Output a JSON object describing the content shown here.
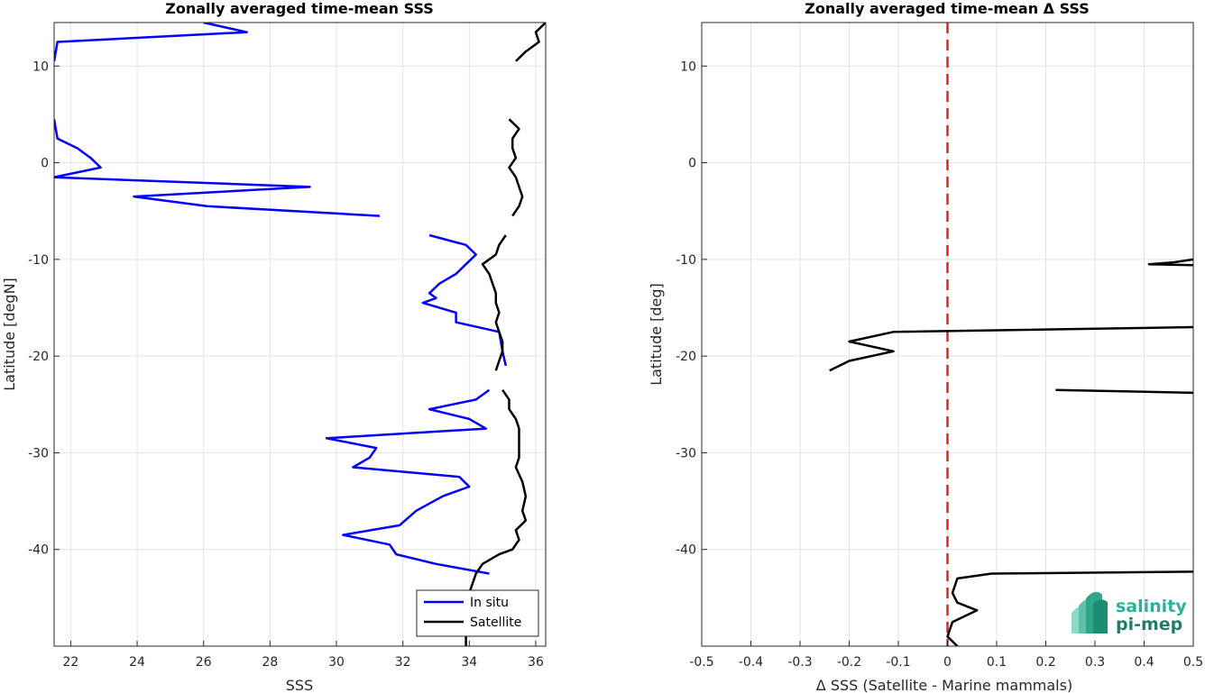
{
  "chart_data": [
    {
      "type": "line",
      "title": "Zonally averaged time-mean SSS",
      "xlabel": "SSS",
      "ylabel": "Latitude [degN]",
      "xlim": [
        21.5,
        36.3
      ],
      "ylim": [
        -50,
        14.5
      ],
      "xticks": [
        22,
        24,
        26,
        28,
        30,
        32,
        34,
        36
      ],
      "yticks": [
        -40,
        -30,
        -20,
        -10,
        0,
        10
      ],
      "grid": true,
      "legend": {
        "placement": "bottom-right",
        "entries": [
          "In situ",
          "Satellite"
        ]
      },
      "series": [
        {
          "name": "In situ",
          "color": "#0000ff",
          "segments": [
            [
              [
                26.0,
                14.5
              ],
              [
                27.3,
                13.5
              ],
              [
                21.6,
                12.5
              ],
              [
                21.5,
                10.5
              ]
            ],
            [
              [
                21.5,
                4.5
              ],
              [
                21.6,
                2.5
              ],
              [
                22.2,
                1.5
              ],
              [
                22.6,
                0.5
              ],
              [
                22.9,
                -0.5
              ],
              [
                21.5,
                -1.5
              ],
              [
                29.2,
                -2.5
              ],
              [
                23.9,
                -3.5
              ],
              [
                26.1,
                -4.5
              ],
              [
                31.3,
                -5.5
              ]
            ],
            [
              [
                32.8,
                -7.5
              ],
              [
                33.9,
                -8.5
              ],
              [
                34.2,
                -9.5
              ],
              [
                33.9,
                -10.5
              ],
              [
                33.6,
                -11.5
              ],
              [
                33.1,
                -12.5
              ],
              [
                32.8,
                -13.5
              ],
              [
                33.0,
                -14.0
              ],
              [
                32.6,
                -14.5
              ],
              [
                33.6,
                -15.5
              ],
              [
                33.6,
                -16.5
              ],
              [
                34.9,
                -17.5
              ],
              [
                35.0,
                -19.5
              ],
              [
                35.1,
                -21.0
              ]
            ],
            [
              [
                34.6,
                -23.5
              ],
              [
                34.2,
                -24.5
              ],
              [
                32.8,
                -25.5
              ],
              [
                34.0,
                -26.5
              ],
              [
                34.5,
                -27.5
              ],
              [
                29.7,
                -28.5
              ],
              [
                31.2,
                -29.5
              ],
              [
                31.0,
                -30.5
              ],
              [
                30.5,
                -31.5
              ],
              [
                33.7,
                -32.5
              ],
              [
                34.0,
                -33.5
              ],
              [
                33.2,
                -34.5
              ],
              [
                32.4,
                -36.0
              ],
              [
                31.9,
                -37.5
              ],
              [
                30.2,
                -38.5
              ],
              [
                31.6,
                -39.5
              ],
              [
                31.8,
                -40.5
              ],
              [
                33.0,
                -41.5
              ],
              [
                34.6,
                -42.5
              ]
            ]
          ]
        },
        {
          "name": "Satellite",
          "color": "#000000",
          "segments": [
            [
              [
                36.3,
                14.5
              ],
              [
                36.0,
                13.5
              ],
              [
                36.1,
                12.5
              ],
              [
                35.7,
                11.5
              ],
              [
                35.4,
                10.5
              ]
            ],
            [
              [
                35.2,
                4.5
              ],
              [
                35.5,
                3.5
              ],
              [
                35.3,
                2.5
              ],
              [
                35.3,
                1.5
              ],
              [
                35.4,
                0.5
              ],
              [
                35.2,
                -0.5
              ],
              [
                35.4,
                -1.5
              ],
              [
                35.5,
                -2.5
              ],
              [
                35.6,
                -3.5
              ],
              [
                35.5,
                -4.5
              ],
              [
                35.3,
                -5.5
              ]
            ],
            [
              [
                35.1,
                -7.5
              ],
              [
                34.9,
                -8.5
              ],
              [
                34.8,
                -9.5
              ],
              [
                34.4,
                -10.5
              ],
              [
                34.6,
                -11.5
              ],
              [
                34.7,
                -12.5
              ],
              [
                34.8,
                -13.5
              ],
              [
                34.8,
                -14.5
              ],
              [
                34.9,
                -15.5
              ],
              [
                34.8,
                -16.5
              ],
              [
                34.9,
                -17.5
              ],
              [
                35.0,
                -18.5
              ],
              [
                35.0,
                -19.5
              ],
              [
                34.9,
                -20.5
              ],
              [
                34.8,
                -21.5
              ]
            ],
            [
              [
                35.0,
                -23.5
              ],
              [
                35.2,
                -24.5
              ],
              [
                35.2,
                -25.5
              ],
              [
                35.4,
                -26.5
              ],
              [
                35.5,
                -27.5
              ],
              [
                35.5,
                -29.0
              ],
              [
                35.5,
                -30.5
              ],
              [
                35.4,
                -31.5
              ],
              [
                35.6,
                -33.0
              ],
              [
                35.7,
                -34.5
              ],
              [
                35.6,
                -36.0
              ],
              [
                35.7,
                -37.0
              ],
              [
                35.4,
                -38.0
              ],
              [
                35.5,
                -39.0
              ],
              [
                35.3,
                -40.0
              ],
              [
                34.9,
                -40.5
              ],
              [
                34.4,
                -41.5
              ],
              [
                34.2,
                -42.5
              ],
              [
                34.1,
                -43.5
              ],
              [
                34.0,
                -44.5
              ],
              [
                34.0,
                -45.5
              ],
              [
                33.9,
                -46.5
              ],
              [
                33.9,
                -48.0
              ],
              [
                33.9,
                -50.0
              ]
            ]
          ]
        }
      ]
    },
    {
      "type": "line",
      "title": "Zonally averaged time-mean Δ SSS",
      "xlabel": "Δ SSS (Satellite - Marine mammals)",
      "ylabel": "Latitude [deg]",
      "xlim": [
        -0.5,
        0.5
      ],
      "ylim": [
        -50,
        14.5
      ],
      "xticks": [
        -0.5,
        -0.4,
        -0.3,
        -0.2,
        -0.1,
        0,
        0.1,
        0.2,
        0.3,
        0.4,
        0.5
      ],
      "yticks": [
        -40,
        -30,
        -20,
        -10,
        0,
        10
      ],
      "grid": true,
      "reference_line": {
        "x": 0,
        "color": "#e8211d",
        "style": "dashed"
      },
      "series": [
        {
          "color": "#000000",
          "segments": [
            [
              [
                0.5,
                -10.0
              ],
              [
                0.46,
                -10.3
              ],
              [
                0.41,
                -10.5
              ],
              [
                0.5,
                -10.6
              ]
            ],
            [
              [
                0.5,
                -17.0
              ],
              [
                -0.11,
                -17.5
              ],
              [
                -0.2,
                -18.5
              ],
              [
                -0.11,
                -19.5
              ],
              [
                -0.2,
                -20.5
              ],
              [
                -0.24,
                -21.5
              ]
            ],
            [
              [
                0.22,
                -23.5
              ],
              [
                0.5,
                -23.8
              ]
            ],
            [
              [
                0.5,
                -42.3
              ],
              [
                0.09,
                -42.5
              ],
              [
                0.02,
                -43.0
              ],
              [
                0.01,
                -44.5
              ],
              [
                0.02,
                -45.5
              ],
              [
                0.06,
                -46.3
              ],
              [
                0.01,
                -47.5
              ],
              [
                0.0,
                -49.0
              ],
              [
                0.02,
                -50.0
              ]
            ]
          ]
        }
      ]
    }
  ],
  "logo": {
    "line1": "salinity",
    "line2": "pi-mep"
  }
}
